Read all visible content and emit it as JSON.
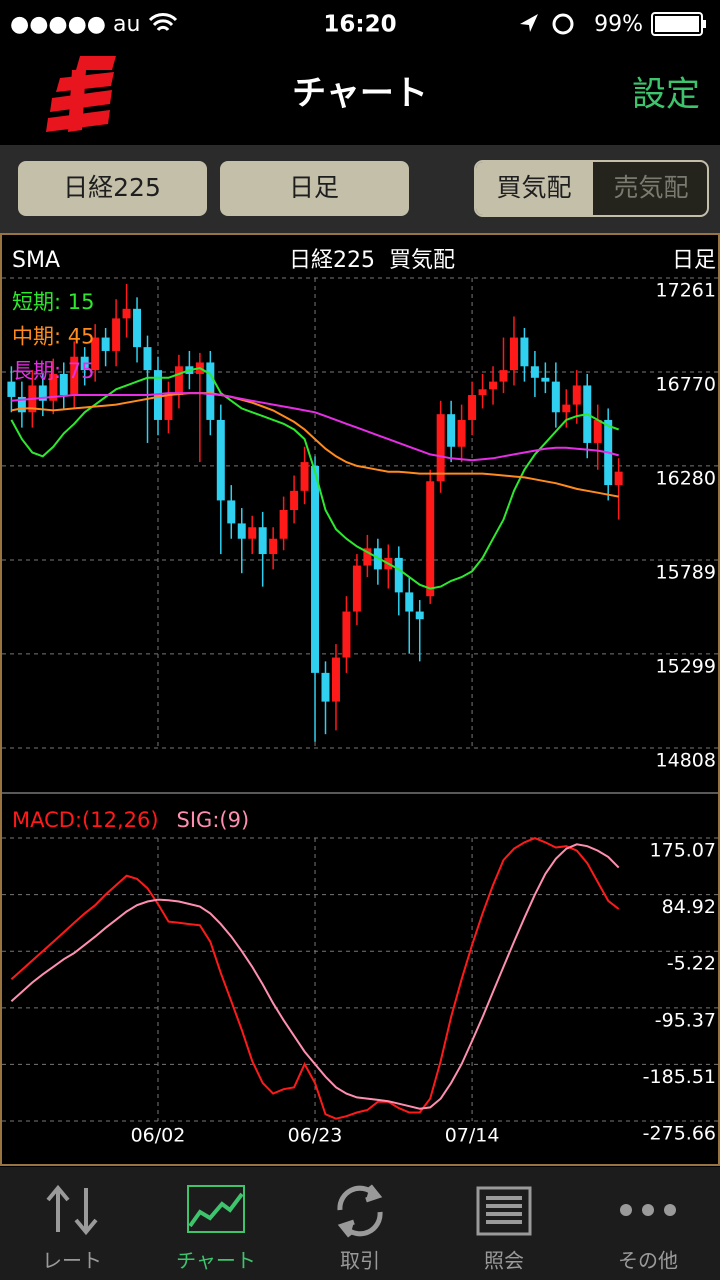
{
  "status_bar": {
    "carrier": "●●●●● au",
    "time": "16:20",
    "battery": "99%"
  },
  "header": {
    "title": "チャート",
    "settings": "設定"
  },
  "toolbar": {
    "index": "日経225",
    "period": "日足",
    "bid": "買気配",
    "ask": "売気配"
  },
  "chart_data": [
    {
      "type": "candlestick",
      "indicator": "SMA",
      "title": "日経225  買気配",
      "period": "日足",
      "categories": [
        null,
        null,
        null,
        null,
        null,
        null,
        null,
        null,
        null,
        null,
        null,
        null,
        null,
        null,
        "06/02",
        null,
        null,
        null,
        null,
        null,
        null,
        null,
        null,
        null,
        null,
        null,
        null,
        null,
        null,
        "06/23",
        null,
        null,
        null,
        null,
        null,
        null,
        null,
        null,
        null,
        null,
        null,
        null,
        null,
        null,
        "07/14",
        null,
        null,
        null,
        null,
        null,
        null,
        null,
        null,
        null,
        null,
        null,
        null,
        null,
        null
      ],
      "open": [
        16720,
        16640,
        16560,
        16700,
        16620,
        16760,
        16650,
        16850,
        16780,
        16950,
        16880,
        17050,
        17100,
        16900,
        16780,
        16520,
        16650,
        16800,
        16760,
        16820,
        16520,
        16100,
        15980,
        15900,
        15960,
        15820,
        15900,
        16050,
        16150,
        16280,
        15200,
        15050,
        15280,
        15520,
        15760,
        15850,
        15740,
        15800,
        15620,
        15520,
        15600,
        16200,
        16550,
        16380,
        16520,
        16650,
        16680,
        16720,
        16780,
        16950,
        16800,
        16740,
        16720,
        16560,
        16600,
        16700,
        16400,
        16520,
        16180
      ],
      "high": [
        16800,
        16720,
        16780,
        16760,
        16840,
        16820,
        16930,
        16900,
        17020,
        17000,
        17150,
        17230,
        17160,
        16960,
        16850,
        16720,
        16860,
        16880,
        16870,
        16880,
        16600,
        16180,
        16060,
        16020,
        16040,
        15960,
        16120,
        16230,
        16380,
        16330,
        15260,
        15350,
        15600,
        15820,
        15920,
        15900,
        15870,
        15860,
        15700,
        15580,
        16260,
        16620,
        16620,
        16600,
        16720,
        16760,
        16800,
        16950,
        17060,
        17000,
        16880,
        16820,
        16820,
        16680,
        16780,
        16760,
        16600,
        16580,
        16320
      ],
      "low": [
        16560,
        16480,
        16480,
        16540,
        16550,
        16580,
        16580,
        16700,
        16720,
        16800,
        16800,
        16950,
        16820,
        16400,
        16440,
        16450,
        16580,
        16680,
        16300,
        16440,
        15820,
        15900,
        15720,
        15820,
        15650,
        15740,
        15840,
        15980,
        16080,
        14840,
        14880,
        14900,
        15200,
        15450,
        15700,
        15660,
        15640,
        15500,
        15300,
        15260,
        15560,
        16140,
        16300,
        16300,
        16440,
        16580,
        16600,
        16660,
        16700,
        16720,
        16640,
        16660,
        16480,
        16480,
        16500,
        16320,
        16260,
        16100,
        16000
      ],
      "close": [
        16640,
        16560,
        16700,
        16620,
        16760,
        16650,
        16850,
        16780,
        16950,
        16880,
        17050,
        17100,
        16900,
        16780,
        16520,
        16650,
        16800,
        16760,
        16820,
        16520,
        16100,
        15980,
        15900,
        15960,
        15820,
        15900,
        16050,
        16150,
        16300,
        15200,
        15050,
        15280,
        15520,
        15760,
        15850,
        15740,
        15800,
        15620,
        15520,
        15480,
        16200,
        16550,
        16380,
        16520,
        16650,
        16680,
        16720,
        16780,
        16950,
        16800,
        16740,
        16720,
        16560,
        16600,
        16700,
        16400,
        16520,
        16180,
        16250
      ],
      "up_color": "#ff1a1a",
      "down_color": "#2fd0f0",
      "series": [
        {
          "name": "短期: 15",
          "color": "#2ee82e",
          "values": [
            16520,
            16420,
            16350,
            16330,
            16380,
            16450,
            16500,
            16560,
            16600,
            16640,
            16680,
            16700,
            16720,
            16740,
            16740,
            16740,
            16760,
            16780,
            16790,
            16760,
            16660,
            16620,
            16580,
            16560,
            16540,
            16520,
            16500,
            16470,
            16420,
            16250,
            16050,
            15950,
            15900,
            15860,
            15830,
            15800,
            15770,
            15740,
            15700,
            15660,
            15640,
            15650,
            15680,
            15700,
            15730,
            15800,
            15900,
            16000,
            16150,
            16260,
            16340,
            16400,
            16460,
            16520,
            16540,
            16550,
            16520,
            16490,
            16470
          ]
        },
        {
          "name": "中期: 45",
          "color": "#ff8a1e",
          "values": [
            16570,
            16580,
            16580,
            16575,
            16570,
            16575,
            16580,
            16585,
            16590,
            16595,
            16600,
            16610,
            16620,
            16630,
            16640,
            16650,
            16655,
            16660,
            16660,
            16660,
            16650,
            16640,
            16625,
            16610,
            16590,
            16570,
            16540,
            16510,
            16470,
            16420,
            16370,
            16330,
            16300,
            16280,
            16270,
            16260,
            16250,
            16250,
            16245,
            16240,
            16240,
            16240,
            16240,
            16240,
            16240,
            16240,
            16235,
            16230,
            16225,
            16220,
            16210,
            16200,
            16190,
            16175,
            16160,
            16150,
            16140,
            16130,
            16120
          ]
        },
        {
          "name": "長期: 75",
          "color": "#e62ee6",
          "values": [
            16620,
            16625,
            16630,
            16635,
            16640,
            16645,
            16650,
            16650,
            16650,
            16650,
            16650,
            16650,
            16650,
            16650,
            16655,
            16660,
            16660,
            16660,
            16660,
            16655,
            16650,
            16640,
            16630,
            16620,
            16610,
            16600,
            16590,
            16580,
            16570,
            16560,
            16540,
            16520,
            16500,
            16480,
            16460,
            16440,
            16420,
            16400,
            16380,
            16360,
            16340,
            16330,
            16320,
            16315,
            16310,
            16315,
            16320,
            16330,
            16340,
            16350,
            16360,
            16370,
            16375,
            16375,
            16370,
            16365,
            16360,
            16350,
            16335
          ]
        }
      ],
      "ylim": [
        14573,
        17433
      ],
      "yticks": [
        17261,
        16770,
        16280,
        15789,
        15299,
        14808
      ],
      "grid": true
    },
    {
      "type": "line",
      "series": [
        {
          "name": "MACD:(12,26)",
          "color": "#ff1a1a",
          "values": [
            -50,
            -35,
            -20,
            -5,
            10,
            25,
            40,
            55,
            68,
            85,
            100,
            115,
            110,
            95,
            70,
            42,
            40,
            38,
            36,
            10,
            -40,
            -85,
            -130,
            -180,
            -215,
            -232,
            -225,
            -222,
            -185,
            -215,
            -265,
            -272,
            -268,
            -262,
            -258,
            -245,
            -245,
            -255,
            -262,
            -262,
            -240,
            -180,
            -110,
            -50,
            5,
            55,
            100,
            140,
            158,
            168,
            175,
            168,
            160,
            162,
            155,
            135,
            105,
            75,
            62
          ]
        },
        {
          "name": "SIG:(9)",
          "color": "#ff8fb0",
          "values": [
            -85,
            -70,
            -55,
            -42,
            -30,
            -18,
            -8,
            5,
            18,
            32,
            45,
            58,
            68,
            74,
            77,
            76,
            74,
            70,
            66,
            55,
            38,
            18,
            -5,
            -30,
            -58,
            -88,
            -115,
            -140,
            -165,
            -185,
            -205,
            -222,
            -232,
            -238,
            -240,
            -242,
            -244,
            -248,
            -252,
            -256,
            -254,
            -240,
            -215,
            -185,
            -148,
            -110,
            -70,
            -30,
            10,
            48,
            85,
            118,
            142,
            158,
            165,
            162,
            155,
            145,
            128
          ]
        }
      ],
      "ylim": [
        -337.7,
        235.6
      ],
      "yticks": [
        175.07,
        84.92,
        -5.22,
        -95.37,
        -185.51,
        -275.66
      ],
      "grid": true
    }
  ],
  "tab_bar": {
    "items": [
      "レート",
      "チャート",
      "取引",
      "照会",
      "その他"
    ]
  }
}
